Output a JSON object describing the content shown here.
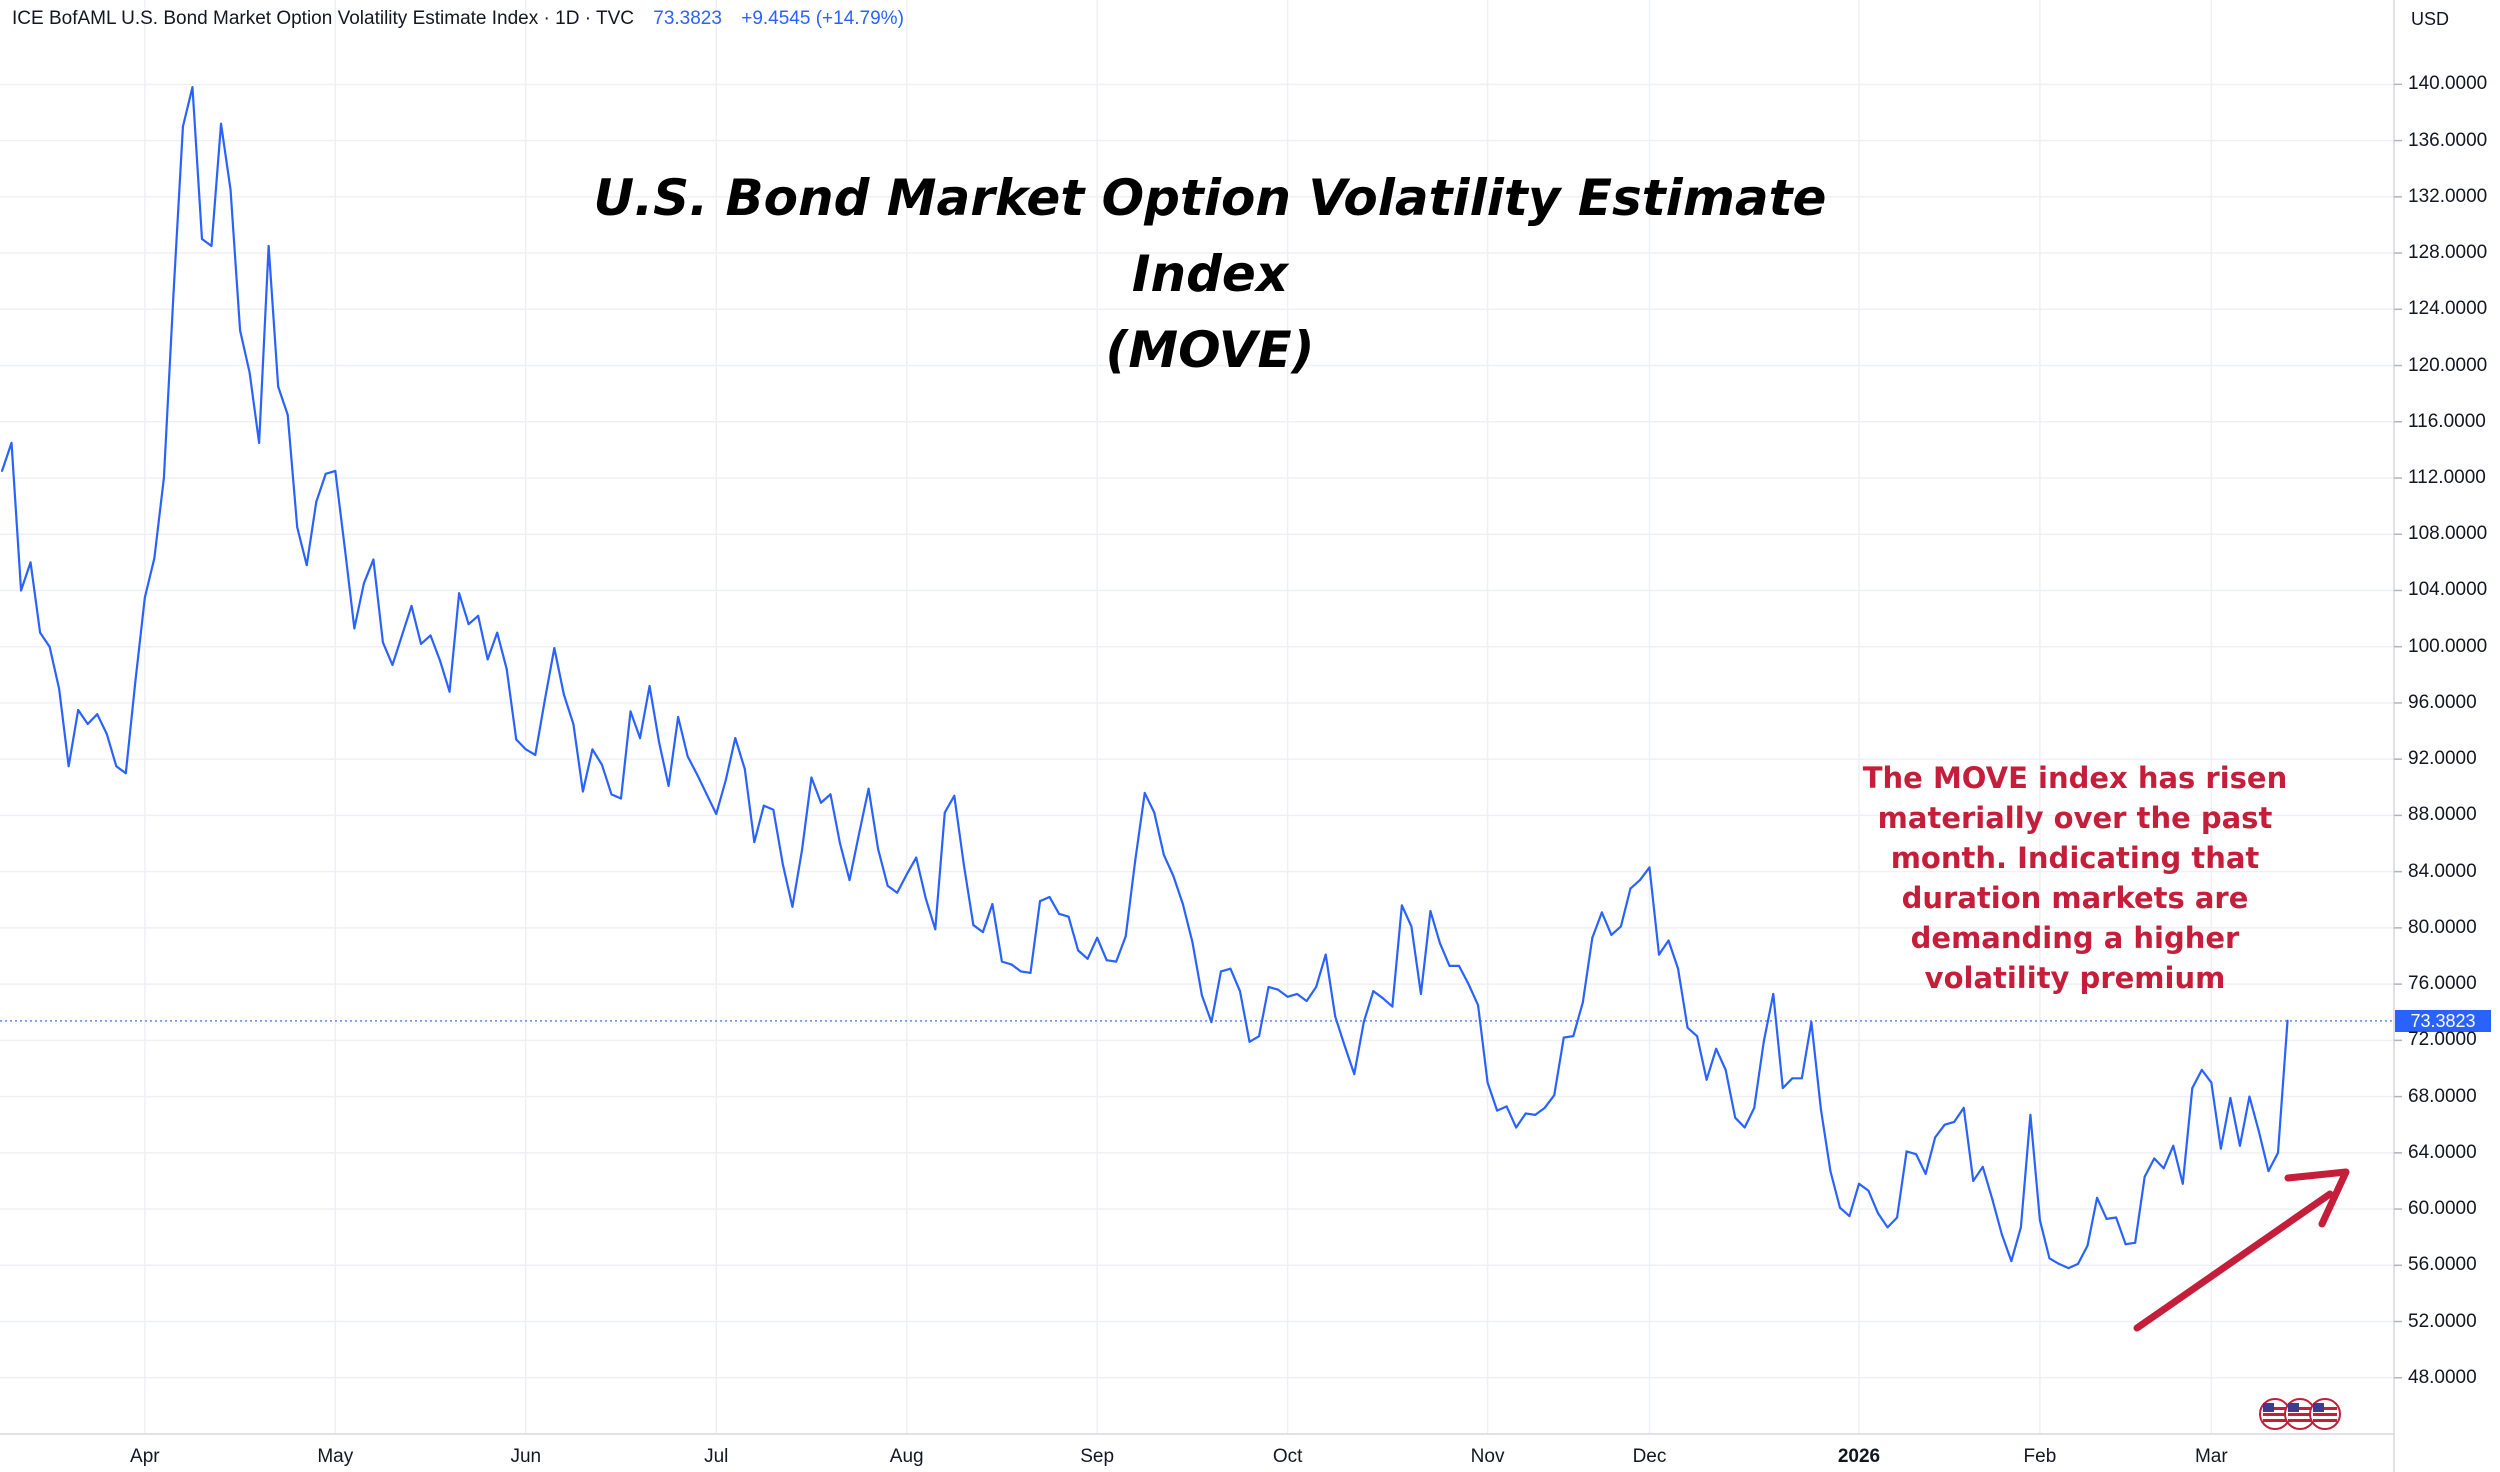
{
  "legend": {
    "symbol_text": "ICE BofAML U.S. Bond Market Option Volatility Estimate Index · 1D · TVC",
    "last_value": "73.3823",
    "change": "+9.4545 (+14.79%)"
  },
  "title": {
    "line1": "U.S. Bond Market Option Volatility Estimate Index",
    "line2": "(MOVE)"
  },
  "annotation": {
    "lines": [
      "The MOVE index has risen",
      "materially over the past",
      "month. Indicating that",
      "duration markets are",
      "demanding a higher",
      "volatility premium"
    ]
  },
  "axis": {
    "currency": "USD",
    "last_badge": "73.3823"
  },
  "colors": {
    "line": "#2962ff",
    "annotation": "#c41e3a",
    "grid": "#eef0f4",
    "badge": "#2962ff"
  },
  "chart_data": {
    "type": "line",
    "title": "U.S. Bond Market Option Volatility Estimate Index (MOVE)",
    "series_name": "ICE BofAML U.S. Bond Market Option Volatility Estimate Index",
    "ylim": [
      44,
      146
    ],
    "y_ticks": [
      48,
      52,
      56,
      60,
      64,
      68,
      72,
      76,
      80,
      84,
      88,
      92,
      96,
      100,
      104,
      108,
      112,
      116,
      120,
      124,
      128,
      132,
      136,
      140
    ],
    "y_tick_labels": [
      "48.0000",
      "52.0000",
      "56.0000",
      "60.0000",
      "64.0000",
      "68.0000",
      "72.0000",
      "76.0000",
      "80.0000",
      "84.0000",
      "88.0000",
      "92.0000",
      "96.0000",
      "100.0000",
      "104.0000",
      "108.0000",
      "112.0000",
      "116.0000",
      "120.0000",
      "124.0000",
      "128.0000",
      "132.0000",
      "136.0000",
      "140.0000"
    ],
    "x_unit": "trading_day_index",
    "xlim": [
      0,
      239
    ],
    "x_ticks": [
      {
        "label": "Apr",
        "x": 15,
        "bold": false
      },
      {
        "label": "May",
        "x": 35,
        "bold": false
      },
      {
        "label": "Jun",
        "x": 55,
        "bold": false
      },
      {
        "label": "Jul",
        "x": 75,
        "bold": false
      },
      {
        "label": "Aug",
        "x": 95,
        "bold": false
      },
      {
        "label": "Sep",
        "x": 115,
        "bold": false
      },
      {
        "label": "Oct",
        "x": 135,
        "bold": false
      },
      {
        "label": "Nov",
        "x": 156,
        "bold": false
      },
      {
        "label": "Dec",
        "x": 173,
        "bold": false
      },
      {
        "label": "2026",
        "x": 195,
        "bold": true
      },
      {
        "label": "Feb",
        "x": 214,
        "bold": false
      },
      {
        "label": "Mar",
        "x": 232,
        "bold": false
      }
    ],
    "last_value": 73.3823,
    "values": [
      112.5,
      114.5,
      104,
      106,
      101,
      100,
      97,
      91.5,
      95.5,
      94.5,
      95.2,
      93.8,
      91.5,
      91,
      97.5,
      103.5,
      106.3,
      112,
      125,
      137,
      139.8,
      129,
      128.5,
      137.2,
      132.5,
      122.5,
      119.5,
      114.5,
      128.5,
      118.5,
      116.5,
      108.5,
      105.8,
      110.3,
      112.3,
      112.5,
      107,
      101.3,
      104.5,
      106.2,
      100.3,
      98.7,
      100.8,
      102.9,
      100.2,
      100.8,
      99,
      96.8,
      103.8,
      101.6,
      102.2,
      99.1,
      101,
      98.4,
      93.4,
      92.7,
      92.3,
      96.2,
      99.9,
      96.6,
      94.5,
      89.7,
      92.7,
      91.6,
      89.5,
      89.2,
      95.4,
      93.5,
      97.2,
      93.2,
      90.1,
      95,
      92.2,
      90.9,
      89.5,
      88.1,
      90.5,
      93.5,
      91.3,
      86.1,
      88.7,
      88.4,
      84.5,
      81.5,
      85.5,
      90.7,
      88.9,
      89.5,
      86,
      83.4,
      86.7,
      89.9,
      85.6,
      83,
      82.5,
      83.8,
      85,
      82.1,
      79.9,
      88.2,
      89.4,
      84.5,
      80.2,
      79.7,
      81.7,
      77.6,
      77.4,
      76.9,
      76.8,
      81.9,
      82.2,
      81,
      80.8,
      78.4,
      77.8,
      79.3,
      77.7,
      77.6,
      79.4,
      84.8,
      89.6,
      88.2,
      85.2,
      83.7,
      81.7,
      79,
      75.2,
      73.3,
      76.9,
      77.1,
      75.5,
      71.9,
      72.3,
      75.8,
      75.6,
      75.1,
      75.3,
      74.8,
      75.8,
      78.1,
      73.7,
      71.6,
      69.6,
      73.3,
      75.5,
      75,
      74.4,
      81.6,
      80.1,
      75.3,
      81.2,
      78.9,
      77.3,
      77.3,
      76,
      74.5,
      69,
      67,
      67.3,
      65.8,
      66.8,
      66.7,
      67.2,
      68.1,
      72.2,
      72.3,
      74.7,
      79.3,
      81.1,
      79.5,
      80.1,
      82.8,
      83.4,
      84.3,
      78.1,
      79.1,
      77.1,
      72.9,
      72.3,
      69.2,
      71.4,
      69.9,
      66.5,
      65.8,
      67.2,
      71.9,
      75.3,
      68.6,
      69.3,
      69.3,
      73.3,
      67.1,
      62.7,
      60.1,
      59.5,
      61.8,
      61.3,
      59.7,
      58.7,
      59.4,
      64.1,
      63.9,
      62.5,
      65.1,
      66,
      66.2,
      67.2,
      62,
      63,
      60.7,
      58.2,
      56.3,
      58.7,
      66.7,
      59.2,
      56.5,
      56.1,
      55.8,
      56.1,
      57.4,
      60.8,
      59.3,
      59.4,
      57.5,
      57.6,
      62.3,
      63.6,
      62.9,
      64.5,
      61.8,
      68.6,
      69.9,
      69,
      64.3,
      67.9,
      64.5,
      68,
      65.5,
      62.7,
      64,
      73.4
    ]
  }
}
